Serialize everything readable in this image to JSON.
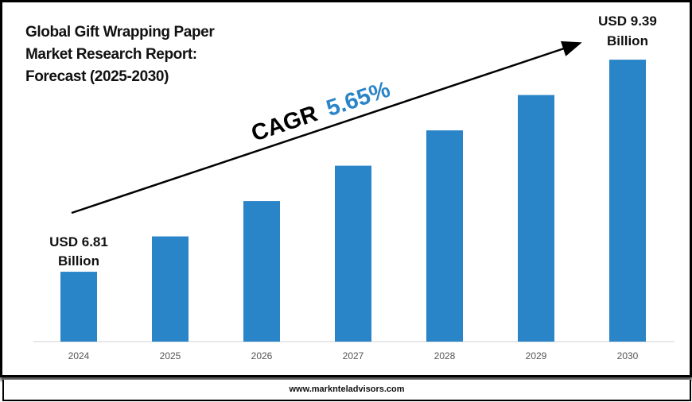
{
  "title_lines": [
    "Global Gift Wrapping Paper",
    "Market Research Report:",
    "Forecast (2025-2030)"
  ],
  "cagr": {
    "label": "CAGR",
    "value": "5.65%"
  },
  "start_label": {
    "line1": "USD 6.81",
    "line2": "Billion"
  },
  "end_label": {
    "line1": "USD 9.39",
    "line2": "Billion"
  },
  "footer": "www.marknteladvisors.com",
  "colors": {
    "bar": "#2A84C8",
    "cagr_value": "#2A84C8",
    "arrow": "#000000"
  },
  "chart_data": {
    "type": "bar",
    "title": "Global Gift Wrapping Paper Market Research Report: Forecast (2025-2030)",
    "categories": [
      "2024",
      "2025",
      "2026",
      "2027",
      "2028",
      "2029",
      "2030"
    ],
    "values": [
      6.81,
      7.24,
      7.67,
      8.1,
      8.53,
      8.96,
      9.39
    ],
    "unit": "USD Billion",
    "xlabel": "",
    "ylabel": "",
    "ylim": [
      5.96,
      10
    ],
    "grid": false,
    "legend": "none"
  }
}
